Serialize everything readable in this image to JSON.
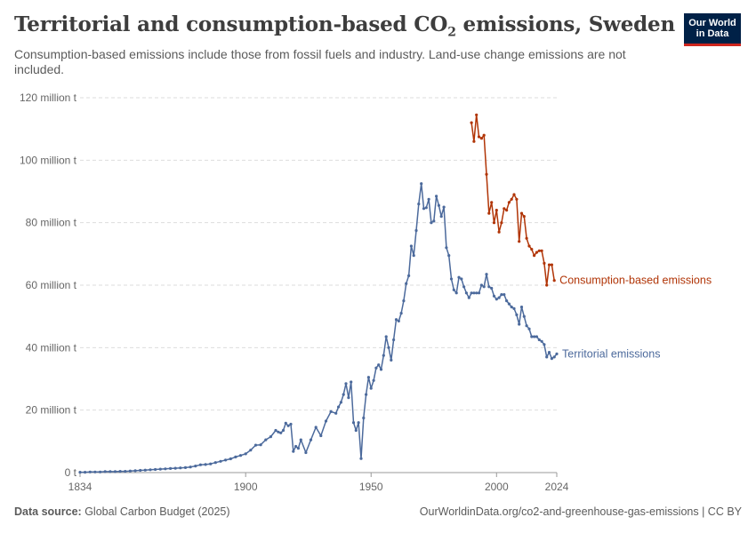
{
  "header": {
    "title": "Territorial and consumption-based CO",
    "title_sub": "2",
    "title_suffix": " emissions, Sweden",
    "subtitle": "Consumption-based emissions include those from fossil fuels and industry. Land-use change emissions are not included."
  },
  "logo": {
    "line1": "Our World",
    "line2": "in Data"
  },
  "footer": {
    "source_label": "Data source:",
    "source_value": " Global Carbon Budget (2025)",
    "url": "OurWorldinData.org/co2-and-greenhouse-gas-emissions | CC BY"
  },
  "colors": {
    "territorial": "#4c6a9c",
    "consumption": "#b13507",
    "grid": "#dddddd",
    "axis": "#999999"
  },
  "chart_data": {
    "type": "line",
    "title": "Territorial and consumption-based CO₂ emissions, Sweden",
    "xlim": [
      1834,
      2024
    ],
    "ylim": [
      0,
      120
    ],
    "y_unit": "million t",
    "y_ticks": [
      {
        "value": 0,
        "label": "0 t"
      },
      {
        "value": 20,
        "label": "20 million t"
      },
      {
        "value": 40,
        "label": "40 million t"
      },
      {
        "value": 60,
        "label": "60 million t"
      },
      {
        "value": 80,
        "label": "80 million t"
      },
      {
        "value": 100,
        "label": "100 million t"
      },
      {
        "value": 120,
        "label": "120 million t"
      }
    ],
    "x_ticks": [
      {
        "value": 1834,
        "label": "1834"
      },
      {
        "value": 1900,
        "label": "1900"
      },
      {
        "value": 1950,
        "label": "1950"
      },
      {
        "value": 2000,
        "label": "2000"
      },
      {
        "value": 2024,
        "label": "2024"
      }
    ],
    "grid": "horizontal-dashed",
    "legend": "line-end labels",
    "series": [
      {
        "name": "Territorial emissions",
        "color": "#4c6a9c",
        "x": [
          1834,
          1836,
          1838,
          1840,
          1842,
          1844,
          1846,
          1848,
          1850,
          1852,
          1854,
          1856,
          1858,
          1860,
          1862,
          1864,
          1866,
          1868,
          1870,
          1872,
          1874,
          1876,
          1878,
          1880,
          1882,
          1884,
          1886,
          1888,
          1890,
          1892,
          1894,
          1896,
          1898,
          1900,
          1902,
          1904,
          1906,
          1908,
          1910,
          1912,
          1913,
          1914,
          1915,
          1916,
          1917,
          1918,
          1919,
          1920,
          1921,
          1922,
          1924,
          1926,
          1928,
          1930,
          1932,
          1934,
          1936,
          1937,
          1938,
          1939,
          1940,
          1941,
          1942,
          1943,
          1944,
          1945,
          1946,
          1947,
          1948,
          1949,
          1950,
          1951,
          1952,
          1953,
          1954,
          1955,
          1956,
          1957,
          1958,
          1959,
          1960,
          1961,
          1962,
          1963,
          1964,
          1965,
          1966,
          1967,
          1968,
          1969,
          1970,
          1971,
          1972,
          1973,
          1974,
          1975,
          1976,
          1977,
          1978,
          1979,
          1980,
          1981,
          1982,
          1983,
          1984,
          1985,
          1986,
          1987,
          1988,
          1989,
          1990,
          1991,
          1992,
          1993,
          1994,
          1995,
          1996,
          1997,
          1998,
          1999,
          2000,
          2001,
          2002,
          2003,
          2004,
          2005,
          2006,
          2007,
          2008,
          2009,
          2010,
          2011,
          2012,
          2013,
          2014,
          2015,
          2016,
          2017,
          2018,
          2019,
          2020,
          2021,
          2022,
          2023,
          2024
        ],
        "y": [
          0.1,
          0.1,
          0.2,
          0.2,
          0.2,
          0.3,
          0.3,
          0.3,
          0.4,
          0.4,
          0.5,
          0.6,
          0.7,
          0.8,
          0.9,
          1.0,
          1.1,
          1.2,
          1.3,
          1.4,
          1.5,
          1.6,
          1.8,
          2.1,
          2.5,
          2.6,
          2.8,
          3.2,
          3.6,
          4.0,
          4.4,
          5.0,
          5.5,
          6.0,
          7.2,
          8.8,
          8.9,
          10.5,
          11.5,
          13.5,
          13.0,
          12.7,
          13.5,
          15.8,
          15.0,
          15.5,
          6.8,
          8.4,
          7.8,
          10.5,
          6.4,
          10.5,
          14.5,
          11.8,
          16.5,
          19.5,
          19.0,
          21.0,
          22.5,
          25.0,
          28.5,
          24.0,
          29.0,
          16.0,
          13.5,
          16.0,
          4.5,
          17.5,
          25.0,
          30.5,
          27.0,
          29.5,
          33.5,
          34.5,
          33.0,
          37.5,
          43.5,
          40.0,
          36.0,
          42.5,
          49.0,
          48.5,
          51.0,
          55.0,
          60.5,
          63.0,
          72.5,
          69.5,
          77.5,
          86.0,
          92.5,
          84.5,
          84.8,
          87.5,
          80.0,
          80.5,
          88.5,
          85.5,
          82.0,
          85.0,
          72.0,
          69.5,
          62.0,
          58.5,
          57.5,
          62.5,
          62.0,
          59.5,
          57.5,
          56.0,
          57.5,
          57.5,
          57.5,
          57.5,
          60.0,
          59.5,
          63.5,
          59.5,
          59.0,
          56.5,
          55.5,
          56.0,
          57.0,
          57.0,
          55.0,
          54.0,
          53.0,
          52.5,
          50.5,
          47.5,
          53.0,
          50.0,
          47.0,
          46.0,
          43.5,
          43.5,
          43.5,
          42.5,
          42.0,
          41.0,
          37.0,
          38.5,
          36.5,
          37.0,
          38.0
        ]
      },
      {
        "name": "Consumption-based emissions",
        "color": "#b13507",
        "x": [
          1990,
          1991,
          1992,
          1993,
          1994,
          1995,
          1996,
          1997,
          1998,
          1999,
          2000,
          2001,
          2002,
          2003,
          2004,
          2005,
          2006,
          2007,
          2008,
          2009,
          2010,
          2011,
          2012,
          2013,
          2014,
          2015,
          2016,
          2017,
          2018,
          2019,
          2020,
          2021,
          2022,
          2023
        ],
        "y": [
          112.0,
          106.0,
          114.5,
          107.5,
          107.0,
          108.0,
          95.5,
          83.0,
          86.5,
          80.0,
          84.0,
          77.0,
          80.0,
          84.5,
          84.0,
          86.5,
          87.5,
          89.0,
          87.5,
          74.0,
          83.0,
          82.0,
          75.0,
          72.5,
          71.5,
          69.5,
          70.5,
          71.0,
          71.0,
          67.0,
          60.0,
          66.5,
          66.5,
          61.5
        ]
      }
    ]
  }
}
